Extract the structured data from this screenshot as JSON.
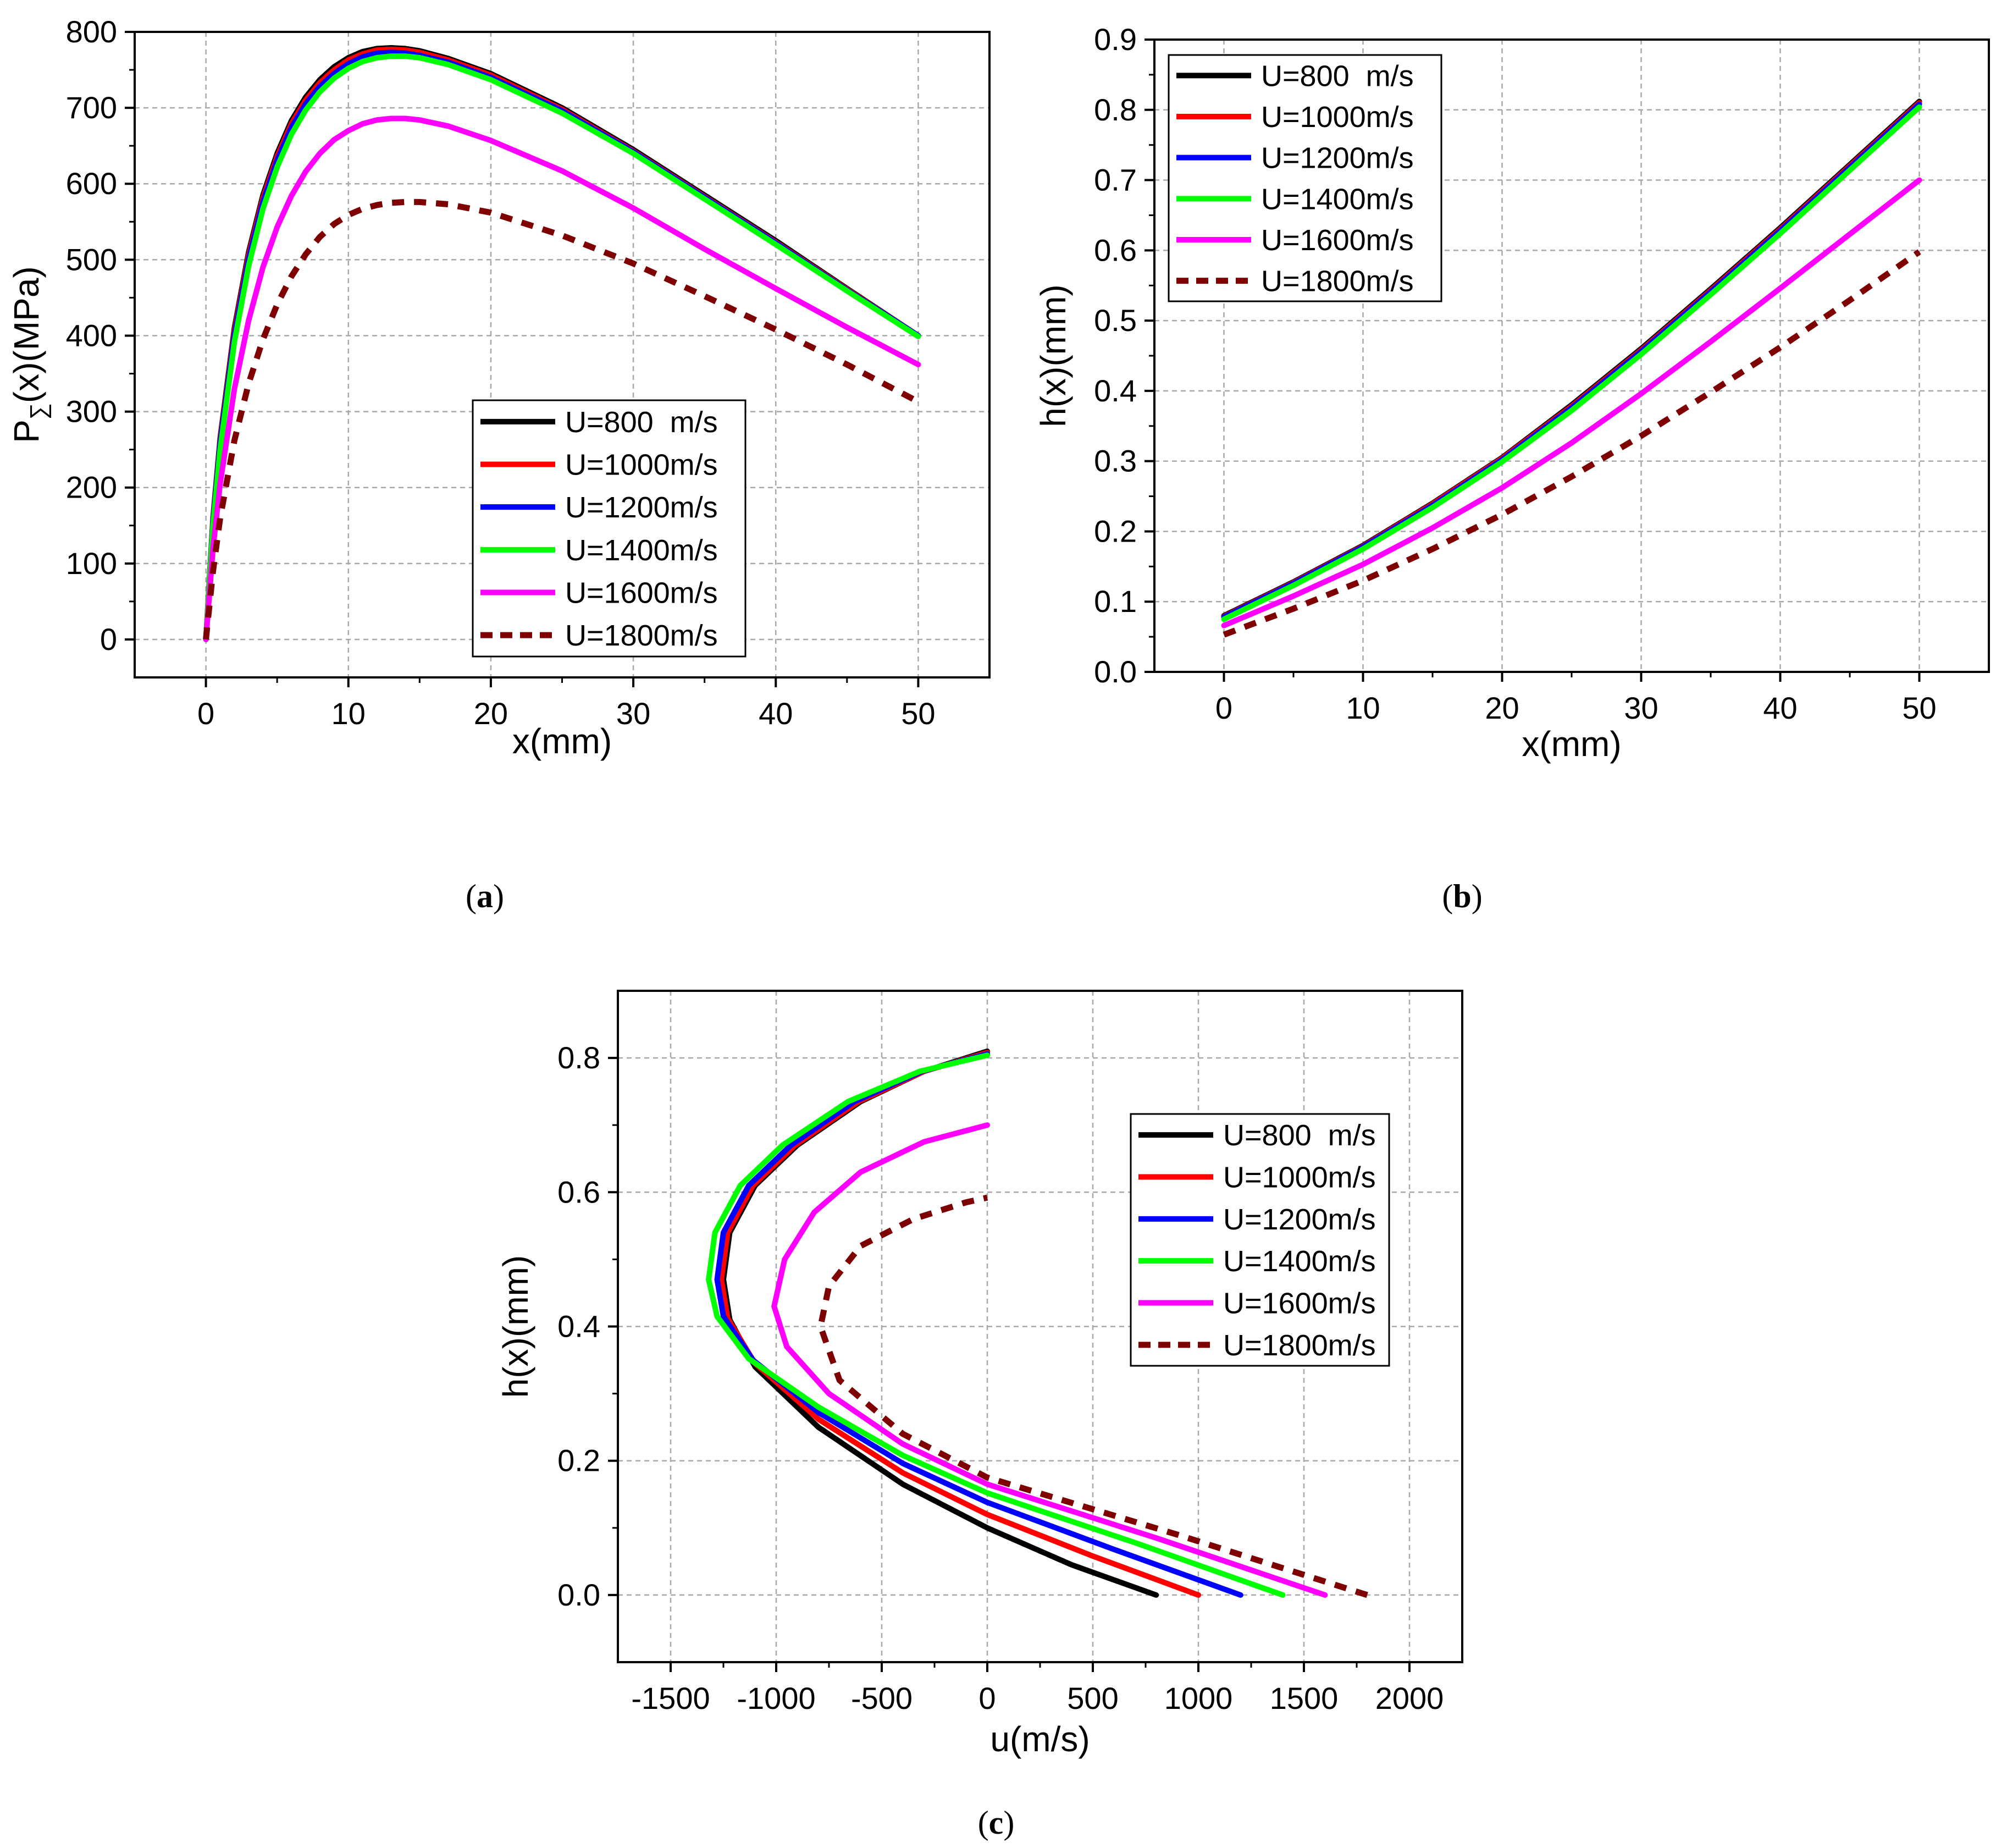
{
  "figure": {
    "panels": [
      "(a)",
      "(b)",
      "(c)"
    ]
  },
  "legend_colors": {
    "U=800  m/s": "#000000",
    "U=1000m/s": "#ff0000",
    "U=1200m/s": "#0000ff",
    "U=1400m/s": "#00ff00",
    "U=1600m/s": "#ff00ff",
    "U=1800m/s": "#7f0000"
  },
  "chart_data": [
    {
      "id": "a",
      "type": "line",
      "panel_label": "(a)",
      "xlabel": "x(mm)",
      "ylabel_main": "P",
      "ylabel_sub": "∑",
      "ylabel_rest": "(x)(MPa)",
      "xlim": [
        -5,
        55
      ],
      "ylim": [
        -50,
        800
      ],
      "xticks": [
        0,
        10,
        20,
        30,
        40,
        50
      ],
      "yticks": [
        0,
        100,
        200,
        300,
        400,
        500,
        600,
        700,
        800
      ],
      "grid": true,
      "legend_position": "bottom-right",
      "series": [
        {
          "name": "U=800  m/s",
          "color": "#000000",
          "dash": false,
          "x": [
            0,
            0.5,
            1,
            2,
            3,
            4,
            5,
            6,
            7,
            8,
            9,
            10,
            11,
            12,
            13,
            14,
            15,
            17,
            20,
            25,
            30,
            35,
            40,
            45,
            50
          ],
          "y": [
            0,
            160,
            265,
            410,
            510,
            585,
            640,
            683,
            714,
            737,
            754,
            766,
            774,
            778,
            779,
            778,
            775,
            765,
            745,
            700,
            645,
            585,
            525,
            462,
            400
          ]
        },
        {
          "name": "U=1000m/s",
          "color": "#ff0000",
          "dash": false,
          "x": [
            0,
            0.5,
            1,
            2,
            3,
            4,
            5,
            6,
            7,
            8,
            9,
            10,
            11,
            12,
            13,
            14,
            15,
            17,
            20,
            25,
            30,
            35,
            40,
            45,
            50
          ],
          "y": [
            0,
            158,
            262,
            406,
            506,
            581,
            636,
            679,
            710,
            733,
            750,
            763,
            771,
            776,
            777,
            776,
            773,
            763,
            743,
            698,
            643,
            583,
            523,
            461,
            400
          ]
        },
        {
          "name": "U=1200m/s",
          "color": "#0000ff",
          "dash": false,
          "x": [
            0,
            0.5,
            1,
            2,
            3,
            4,
            5,
            6,
            7,
            8,
            9,
            10,
            11,
            12,
            13,
            14,
            15,
            17,
            20,
            25,
            30,
            35,
            40,
            45,
            50
          ],
          "y": [
            0,
            155,
            258,
            401,
            501,
            576,
            631,
            674,
            705,
            728,
            745,
            758,
            767,
            772,
            773,
            772,
            769,
            760,
            740,
            696,
            642,
            582,
            522,
            460,
            400
          ]
        },
        {
          "name": "U=1400m/s",
          "color": "#00ff00",
          "dash": false,
          "x": [
            0,
            0.5,
            1,
            2,
            3,
            4,
            5,
            6,
            7,
            8,
            9,
            10,
            11,
            12,
            13,
            14,
            15,
            17,
            20,
            25,
            30,
            35,
            40,
            45,
            50
          ],
          "y": [
            0,
            150,
            250,
            392,
            492,
            567,
            622,
            665,
            697,
            721,
            739,
            752,
            761,
            766,
            768,
            768,
            766,
            757,
            737,
            693,
            640,
            580,
            520,
            459,
            399
          ]
        },
        {
          "name": "U=1600m/s",
          "color": "#ff00ff",
          "dash": false,
          "x": [
            0,
            0.5,
            1,
            2,
            3,
            4,
            5,
            6,
            7,
            8,
            9,
            10,
            11,
            12,
            13,
            14,
            15,
            17,
            20,
            25,
            30,
            35,
            40,
            45,
            50
          ],
          "y": [
            0,
            120,
            205,
            330,
            420,
            490,
            543,
            584,
            616,
            640,
            658,
            670,
            679,
            684,
            686,
            686,
            684,
            676,
            657,
            617,
            568,
            514,
            462,
            411,
            362
          ]
        },
        {
          "name": "U=1800m/s",
          "color": "#7f0000",
          "dash": true,
          "x": [
            0,
            0.5,
            1,
            2,
            3,
            4,
            5,
            6,
            7,
            8,
            9,
            10,
            11,
            12,
            13,
            14,
            15,
            17,
            20,
            25,
            30,
            35,
            40,
            45,
            50
          ],
          "y": [
            0,
            90,
            160,
            262,
            337,
            395,
            441,
            478,
            507,
            530,
            547,
            559,
            567,
            572,
            575,
            576,
            576,
            573,
            562,
            532,
            495,
            452,
            408,
            362,
            313
          ]
        }
      ]
    },
    {
      "id": "b",
      "type": "line",
      "panel_label": "(b)",
      "xlabel": "x(mm)",
      "ylabel": "h(x)(mm)",
      "xlim": [
        -5,
        55
      ],
      "ylim": [
        0.0,
        0.9
      ],
      "xticks": [
        0,
        10,
        20,
        30,
        40,
        50
      ],
      "yticks": [
        0.0,
        0.1,
        0.2,
        0.3,
        0.4,
        0.5,
        0.6,
        0.7,
        0.8,
        0.9
      ],
      "ytick_format": 1,
      "grid": true,
      "legend_position": "top-left",
      "series": [
        {
          "name": "U=800  m/s",
          "color": "#000000",
          "dash": false,
          "x": [
            0,
            5,
            10,
            15,
            20,
            25,
            30,
            35,
            40,
            45,
            50
          ],
          "y": [
            0.08,
            0.128,
            0.18,
            0.24,
            0.305,
            0.38,
            0.46,
            0.545,
            0.632,
            0.722,
            0.812
          ]
        },
        {
          "name": "U=1000m/s",
          "color": "#ff0000",
          "dash": false,
          "x": [
            0,
            5,
            10,
            15,
            20,
            25,
            30,
            35,
            40,
            45,
            50
          ],
          "y": [
            0.079,
            0.127,
            0.179,
            0.239,
            0.304,
            0.378,
            0.458,
            0.543,
            0.63,
            0.72,
            0.81
          ]
        },
        {
          "name": "U=1200m/s",
          "color": "#0000ff",
          "dash": false,
          "x": [
            0,
            5,
            10,
            15,
            20,
            25,
            30,
            35,
            40,
            45,
            50
          ],
          "y": [
            0.078,
            0.126,
            0.178,
            0.237,
            0.302,
            0.376,
            0.456,
            0.541,
            0.628,
            0.718,
            0.808
          ]
        },
        {
          "name": "U=1400m/s",
          "color": "#00ff00",
          "dash": false,
          "x": [
            0,
            5,
            10,
            15,
            20,
            25,
            30,
            35,
            40,
            45,
            50
          ],
          "y": [
            0.075,
            0.123,
            0.175,
            0.234,
            0.299,
            0.372,
            0.452,
            0.537,
            0.624,
            0.714,
            0.804
          ]
        },
        {
          "name": "U=1600m/s",
          "color": "#ff00ff",
          "dash": false,
          "x": [
            0,
            5,
            10,
            15,
            20,
            25,
            30,
            35,
            40,
            45,
            50
          ],
          "y": [
            0.066,
            0.108,
            0.153,
            0.205,
            0.262,
            0.326,
            0.396,
            0.47,
            0.546,
            0.623,
            0.7
          ]
        },
        {
          "name": "U=1800m/s",
          "color": "#7f0000",
          "dash": true,
          "x": [
            0,
            5,
            10,
            15,
            20,
            25,
            30,
            35,
            40,
            45,
            50
          ],
          "y": [
            0.053,
            0.09,
            0.13,
            0.175,
            0.224,
            0.278,
            0.336,
            0.398,
            0.462,
            0.529,
            0.598
          ]
        }
      ]
    },
    {
      "id": "c",
      "type": "line",
      "panel_label": "(c)",
      "xlabel": "u(m/s)",
      "ylabel": "h(x)(mm)",
      "xlim": [
        -1750,
        2250
      ],
      "ylim": [
        -0.1,
        0.9
      ],
      "xticks": [
        -1500,
        -1000,
        -500,
        0,
        500,
        1000,
        1500,
        2000
      ],
      "yticks": [
        0.0,
        0.2,
        0.4,
        0.6,
        0.8
      ],
      "ytick_format": 1,
      "grid": true,
      "legend_position": "right",
      "series": [
        {
          "name": "U=800  m/s",
          "color": "#000000",
          "dash": false,
          "x": [
            800,
            400,
            0,
            -400,
            -800,
            -1100,
            -1220,
            -1250,
            -1220,
            -1100,
            -900,
            -600,
            -300,
            0
          ],
          "y": [
            0.0,
            0.045,
            0.1,
            0.165,
            0.25,
            0.34,
            0.41,
            0.47,
            0.54,
            0.61,
            0.67,
            0.735,
            0.78,
            0.81
          ]
        },
        {
          "name": "U=1000m/s",
          "color": "#ff0000",
          "dash": false,
          "x": [
            1000,
            500,
            0,
            -400,
            -800,
            -1100,
            -1230,
            -1260,
            -1230,
            -1110,
            -910,
            -610,
            -300,
            0
          ],
          "y": [
            0.0,
            0.058,
            0.12,
            0.182,
            0.262,
            0.345,
            0.412,
            0.47,
            0.54,
            0.61,
            0.67,
            0.735,
            0.78,
            0.808
          ]
        },
        {
          "name": "U=1200m/s",
          "color": "#0000ff",
          "dash": false,
          "x": [
            1200,
            600,
            0,
            -400,
            -800,
            -1110,
            -1250,
            -1280,
            -1250,
            -1130,
            -930,
            -630,
            -310,
            0
          ],
          "y": [
            0.0,
            0.068,
            0.138,
            0.196,
            0.272,
            0.35,
            0.415,
            0.47,
            0.54,
            0.61,
            0.67,
            0.735,
            0.78,
            0.806
          ]
        },
        {
          "name": "U=1400m/s",
          "color": "#00ff00",
          "dash": false,
          "x": [
            1400,
            700,
            0,
            -400,
            -800,
            -1130,
            -1280,
            -1320,
            -1290,
            -1170,
            -970,
            -660,
            -320,
            0
          ],
          "y": [
            0.0,
            0.078,
            0.152,
            0.208,
            0.28,
            0.352,
            0.415,
            0.47,
            0.54,
            0.61,
            0.67,
            0.735,
            0.78,
            0.804
          ]
        },
        {
          "name": "U=1600m/s",
          "color": "#ff00ff",
          "dash": false,
          "x": [
            1600,
            800,
            0,
            -400,
            -750,
            -950,
            -1010,
            -960,
            -820,
            -600,
            -300,
            0
          ],
          "y": [
            0.0,
            0.085,
            0.165,
            0.225,
            0.3,
            0.37,
            0.43,
            0.5,
            0.57,
            0.63,
            0.675,
            0.7
          ]
        },
        {
          "name": "U=1800m/s",
          "color": "#7f0000",
          "dash": true,
          "x": [
            1800,
            900,
            0,
            -400,
            -700,
            -790,
            -750,
            -600,
            -350,
            -100,
            0
          ],
          "y": [
            0.0,
            0.09,
            0.175,
            0.24,
            0.32,
            0.4,
            0.46,
            0.52,
            0.56,
            0.585,
            0.592
          ]
        }
      ]
    }
  ]
}
